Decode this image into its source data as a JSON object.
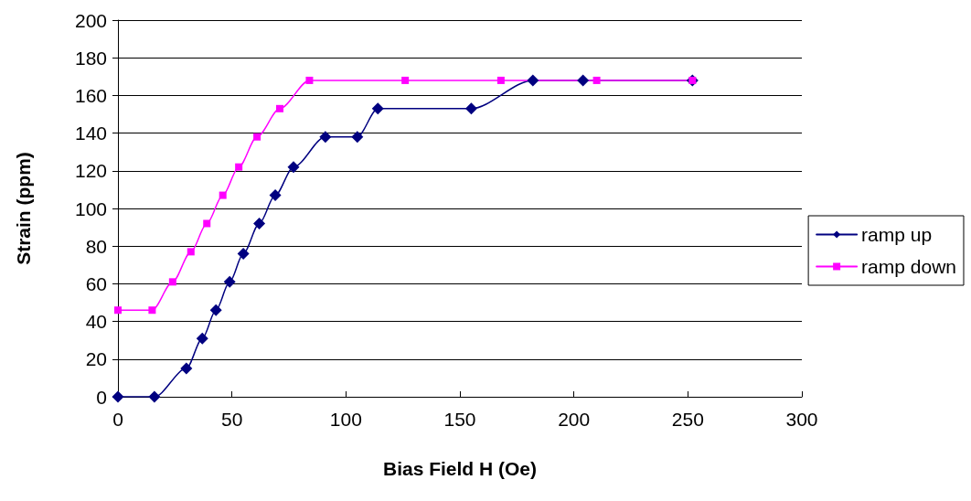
{
  "chart_data": {
    "type": "line",
    "xlabel": "Bias Field H (Oe)",
    "ylabel": "Strain (ppm)",
    "xlim": [
      0,
      300
    ],
    "xticks": [
      0,
      50,
      100,
      150,
      200,
      250,
      300
    ],
    "ylim": [
      0,
      200
    ],
    "yticks": [
      0,
      20,
      40,
      60,
      80,
      100,
      120,
      140,
      160,
      180,
      200
    ],
    "grid": "y",
    "legend": "right",
    "line_style": "solid",
    "series": [
      {
        "name": "ramp up",
        "color": "#000080",
        "marker": "diamond",
        "x": [
          0,
          16,
          30,
          37,
          43,
          49,
          55,
          62,
          69,
          77,
          91,
          105,
          114,
          155,
          182,
          204,
          252
        ],
        "values": [
          0,
          0,
          15,
          31,
          46,
          61,
          76,
          92,
          107,
          122,
          138,
          138,
          153,
          153,
          168,
          168,
          168
        ]
      },
      {
        "name": "ramp down",
        "color": "#ff00ff",
        "marker": "square",
        "x": [
          0,
          15,
          24,
          32,
          39,
          46,
          53,
          61,
          71,
          84,
          126,
          168,
          210,
          252
        ],
        "values": [
          46,
          46,
          61,
          77,
          92,
          107,
          122,
          138,
          153,
          168,
          168,
          168,
          168,
          168
        ]
      }
    ]
  }
}
